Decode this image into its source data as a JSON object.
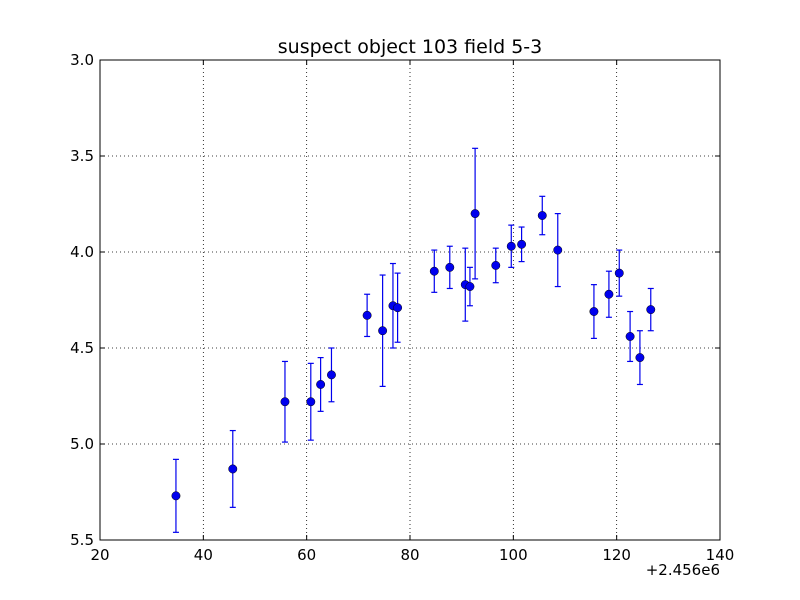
{
  "chart_data": {
    "type": "scatter",
    "title": "suspect object 103 field 5-3",
    "xlabel": "",
    "ylabel": "",
    "x_offset_label": "+2.456e6",
    "xlim": [
      20,
      140
    ],
    "ylim": [
      5.5,
      3.0
    ],
    "y_inverted": true,
    "x_ticks": [
      "20",
      "40",
      "60",
      "80",
      "100",
      "120",
      "140"
    ],
    "y_ticks": [
      "3.0",
      "3.5",
      "4.0",
      "4.5",
      "5.0",
      "5.5"
    ],
    "grid": true,
    "marker_color": "#0000ee",
    "series": [
      {
        "points": [
          {
            "x": 34.7,
            "y": 5.27,
            "err": 0.19
          },
          {
            "x": 45.7,
            "y": 5.13,
            "err": 0.2
          },
          {
            "x": 55.8,
            "y": 4.78,
            "err": 0.21
          },
          {
            "x": 60.8,
            "y": 4.78,
            "err": 0.2
          },
          {
            "x": 62.7,
            "y": 4.69,
            "err": 0.14
          },
          {
            "x": 64.8,
            "y": 4.64,
            "err": 0.14
          },
          {
            "x": 71.7,
            "y": 4.33,
            "err": 0.11
          },
          {
            "x": 74.7,
            "y": 4.41,
            "err": 0.29
          },
          {
            "x": 76.7,
            "y": 4.28,
            "err": 0.22
          },
          {
            "x": 77.6,
            "y": 4.29,
            "err": 0.18
          },
          {
            "x": 84.7,
            "y": 4.1,
            "err": 0.11
          },
          {
            "x": 87.7,
            "y": 4.08,
            "err": 0.11
          },
          {
            "x": 90.7,
            "y": 4.17,
            "err": 0.19
          },
          {
            "x": 91.6,
            "y": 4.18,
            "err": 0.1
          },
          {
            "x": 92.6,
            "y": 3.8,
            "err": 0.34
          },
          {
            "x": 96.6,
            "y": 4.07,
            "err": 0.09
          },
          {
            "x": 99.6,
            "y": 3.97,
            "err": 0.11
          },
          {
            "x": 101.6,
            "y": 3.96,
            "err": 0.09
          },
          {
            "x": 105.6,
            "y": 3.81,
            "err": 0.1
          },
          {
            "x": 108.6,
            "y": 3.99,
            "err": 0.19
          },
          {
            "x": 115.6,
            "y": 4.31,
            "err": 0.14
          },
          {
            "x": 118.5,
            "y": 4.22,
            "err": 0.12
          },
          {
            "x": 120.5,
            "y": 4.11,
            "err": 0.12
          },
          {
            "x": 122.6,
            "y": 4.44,
            "err": 0.13
          },
          {
            "x": 124.5,
            "y": 4.55,
            "err": 0.14
          },
          {
            "x": 126.6,
            "y": 4.3,
            "err": 0.11
          }
        ]
      }
    ]
  }
}
